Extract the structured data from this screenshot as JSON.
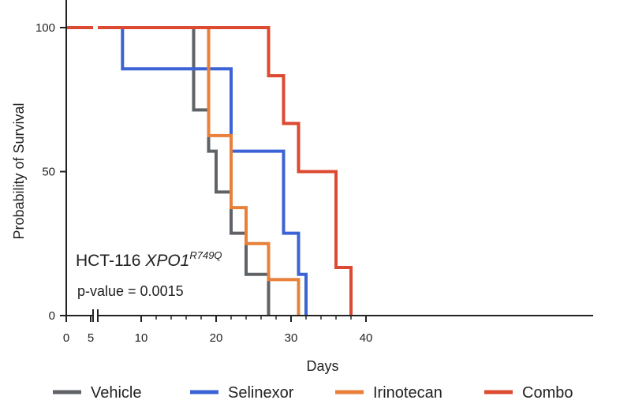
{
  "chart_data": {
    "type": "line",
    "step": true,
    "xlabel": "Days",
    "ylabel": "Probability of Survival",
    "xlim": [
      0,
      40
    ],
    "ylim": [
      0,
      100
    ],
    "x_axis_break": true,
    "x_ticks": [
      0,
      5,
      10,
      20,
      30,
      40
    ],
    "y_ticks": [
      0,
      50,
      100
    ],
    "grid": false,
    "legend_position": "bottom",
    "annotations": {
      "cell_line": "HCT-116 ",
      "gene": "XPO1",
      "mutation": "R749Q",
      "pvalue": "p-value = 0.0015"
    },
    "series": [
      {
        "name": "Vehicle",
        "color": "#5f6266",
        "points": [
          [
            0,
            100
          ],
          [
            17,
            100
          ],
          [
            17,
            71.4
          ],
          [
            19,
            71.4
          ],
          [
            19,
            57.1
          ],
          [
            20,
            57.1
          ],
          [
            20,
            42.9
          ],
          [
            22,
            42.9
          ],
          [
            22,
            28.6
          ],
          [
            24,
            28.6
          ],
          [
            24,
            14.3
          ],
          [
            27,
            14.3
          ],
          [
            27,
            0
          ]
        ]
      },
      {
        "name": "Selinexor",
        "color": "#3b63d6",
        "points": [
          [
            0,
            100
          ],
          [
            7.5,
            100
          ],
          [
            7.5,
            85.7
          ],
          [
            22,
            85.7
          ],
          [
            22,
            57.1
          ],
          [
            29,
            57.1
          ],
          [
            29,
            28.6
          ],
          [
            31,
            28.6
          ],
          [
            31,
            14.3
          ],
          [
            32,
            14.3
          ],
          [
            32,
            0
          ]
        ]
      },
      {
        "name": "Irinotecan",
        "color": "#e8803a",
        "points": [
          [
            0,
            100
          ],
          [
            19,
            100
          ],
          [
            19,
            62.5
          ],
          [
            22,
            62.5
          ],
          [
            22,
            37.5
          ],
          [
            24,
            37.5
          ],
          [
            24,
            25
          ],
          [
            27,
            25
          ],
          [
            27,
            12.5
          ],
          [
            31,
            12.5
          ],
          [
            31,
            0
          ]
        ]
      },
      {
        "name": "Combo",
        "color": "#dc4a32",
        "points": [
          [
            0,
            100
          ],
          [
            27,
            100
          ],
          [
            27,
            83.3
          ],
          [
            29,
            83.3
          ],
          [
            29,
            66.7
          ],
          [
            31,
            66.7
          ],
          [
            31,
            50
          ],
          [
            36,
            50
          ],
          [
            36,
            16.7
          ],
          [
            38,
            16.7
          ],
          [
            38,
            0
          ]
        ]
      }
    ]
  }
}
